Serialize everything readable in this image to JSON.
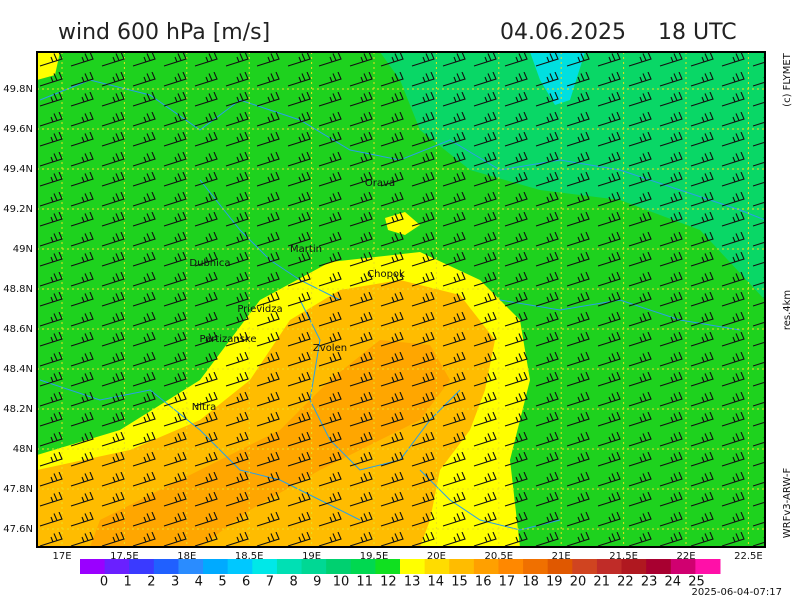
{
  "header": {
    "title": "wind 600 hPa [m/s]",
    "date": "04.06.2025",
    "time": "18 UTC"
  },
  "side_labels": {
    "copyright": "(c) FLYMET",
    "resolution": "res.4km",
    "model": "WRFv3-ARW-F"
  },
  "map": {
    "lat_labels": [
      "49.8N",
      "49.6N",
      "49.4N",
      "49.2N",
      "49N",
      "48.8N",
      "48.6N",
      "48.4N",
      "48.2N",
      "48N",
      "47.8N",
      "47.6N"
    ],
    "lon_labels": [
      "17E",
      "17.5E",
      "18E",
      "18.5E",
      "19E",
      "19.5E",
      "20E",
      "20.5E",
      "21E",
      "21.5E",
      "22E",
      "22.5E"
    ],
    "places": [
      "Orava",
      "Martin",
      "Dubnica",
      "Chopok",
      "Prievidza",
      "Partizanske",
      "Zvolen",
      "Nitra"
    ]
  },
  "legend": {
    "levels": [
      0,
      1,
      2,
      3,
      4,
      5,
      6,
      7,
      8,
      9,
      10,
      11,
      12,
      13,
      14,
      15,
      16,
      17,
      18,
      19,
      20,
      21,
      22,
      23,
      24,
      25
    ],
    "colors": [
      "#9a00ff",
      "#6a20ff",
      "#3a3aff",
      "#2060ff",
      "#2a8cff",
      "#00aaff",
      "#00c8ff",
      "#00e8e8",
      "#00e0b4",
      "#00d894",
      "#00d070",
      "#00d850",
      "#10e020",
      "#ffff00",
      "#ffdc00",
      "#ffbc00",
      "#ffa000",
      "#ff8800",
      "#f07000",
      "#e05800",
      "#d04420",
      "#c02c28",
      "#b01820",
      "#a80030",
      "#d00070",
      "#ff10a8"
    ]
  },
  "footer": {
    "timestamp": "2025-06-04-07:17"
  }
}
